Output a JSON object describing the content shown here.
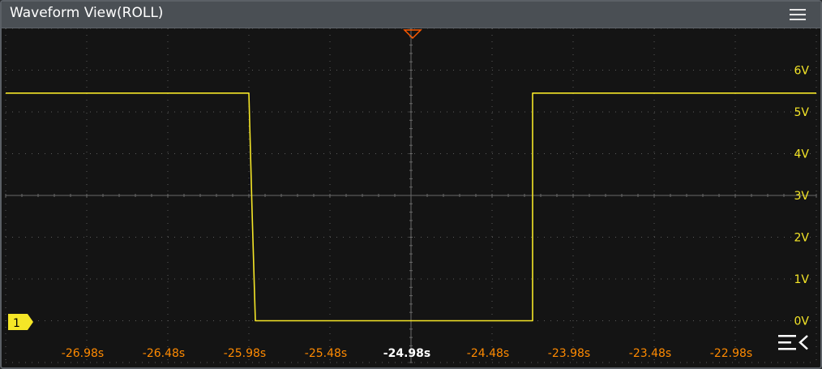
{
  "window": {
    "title": "Waveform View(ROLL)",
    "menu_icon": "hamburger-menu-icon"
  },
  "channel": {
    "label": "1",
    "color": "#f5e627"
  },
  "trigger_marker_color": "#ff5a00",
  "side_menu_icon": "collapse-menu-icon",
  "chart_data": {
    "type": "line",
    "series": [
      {
        "name": "",
        "color": "#f5e627",
        "x": [
          -27.48,
          -25.98,
          -25.96,
          -25.94,
          -24.23,
          -24.23,
          -22.48
        ],
        "y": [
          5.45,
          5.45,
          2.6,
          0.0,
          0.0,
          5.45,
          5.45
        ]
      }
    ],
    "x_ticks": [
      "-26.98s",
      "-26.48s",
      "-25.98s",
      "-25.48s",
      "-24.98s",
      "-24.48s",
      "-23.98s",
      "-23.48s",
      "-22.98s"
    ],
    "x_tick_values": [
      -26.98,
      -26.48,
      -25.98,
      -25.48,
      -24.98,
      -24.48,
      -23.98,
      -23.48,
      -22.98
    ],
    "x_center_tick": "-24.98s",
    "y_ticks": [
      "0V",
      "1V",
      "2V",
      "3V",
      "4V",
      "5V",
      "6V"
    ],
    "y_tick_values": [
      0,
      1,
      2,
      3,
      4,
      5,
      6
    ],
    "xlim": [
      -27.48,
      -22.48
    ],
    "ylim": [
      -1,
      7
    ],
    "grid": true,
    "xlabel": "",
    "ylabel": ""
  }
}
